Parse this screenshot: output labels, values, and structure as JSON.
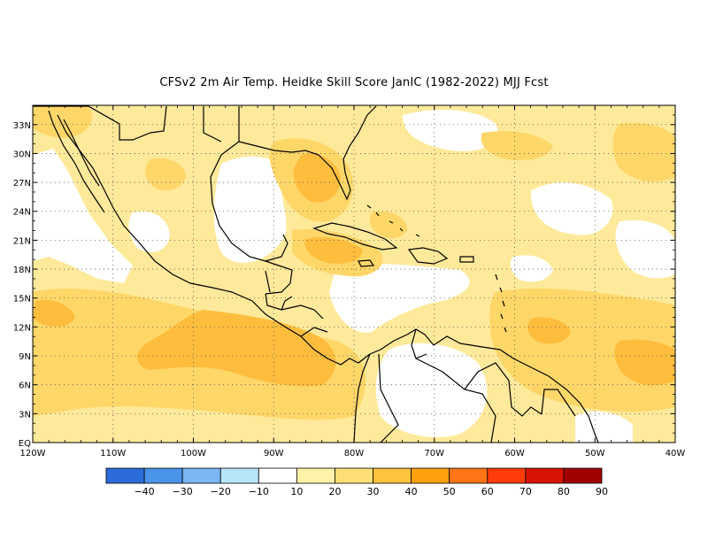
{
  "title": "CFSv2  2m Air Temp. Heidke Skill Score JanIC (1982-2022) MJJ Fcst",
  "map": {
    "lat_labels": [
      "33N",
      "30N",
      "27N",
      "24N",
      "21N",
      "18N",
      "15N",
      "12N",
      "9N",
      "6N",
      "3N",
      "EQ"
    ],
    "lon_labels": [
      "120W",
      "110W",
      "100W",
      "90W",
      "80W",
      "70W",
      "60W",
      "50W",
      "40W"
    ],
    "lat_range": [
      0,
      35
    ],
    "lon_range": [
      -120,
      -40
    ],
    "grid": "dotted"
  },
  "colorbar": {
    "labels": [
      "-40",
      "-30",
      "-20",
      "-10",
      "10",
      "20",
      "30",
      "40",
      "50",
      "60",
      "70",
      "80",
      "90"
    ],
    "colors": [
      "#2c6cd8",
      "#4a94ea",
      "#7cb6f2",
      "#b6e6fa",
      "#ffffff",
      "#fff2a8",
      "#ffdf75",
      "#ffc23f",
      "#ffa00e",
      "#ff7414",
      "#ff3c0a",
      "#d81204",
      "#a00202"
    ]
  },
  "colors": {
    "land_outline": "#000000",
    "background": "#ffffff"
  }
}
